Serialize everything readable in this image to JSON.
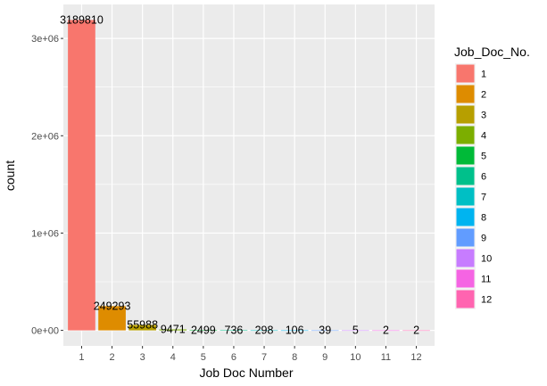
{
  "chart_data": {
    "type": "bar",
    "xlabel": "Job Doc Number",
    "ylabel": "count",
    "categories": [
      "1",
      "2",
      "3",
      "4",
      "5",
      "6",
      "7",
      "8",
      "9",
      "10",
      "11",
      "12"
    ],
    "values": [
      3189810,
      249293,
      55988,
      9471,
      2499,
      736,
      298,
      106,
      39,
      5,
      2,
      2
    ],
    "data_labels": [
      "3189810",
      "249293",
      "55988",
      "9471",
      "2499",
      "736",
      "298",
      "106",
      "39",
      "5",
      "2",
      "2"
    ],
    "y_ticks": [
      {
        "value": 0,
        "label": "0e+00"
      },
      {
        "value": 1000000,
        "label": "1e+06"
      },
      {
        "value": 2000000,
        "label": "2e+06"
      },
      {
        "value": 3000000,
        "label": "3e+06"
      }
    ],
    "ylim": [
      -159490,
      3349300
    ],
    "grid": true,
    "legend": {
      "title": "Job_Doc_No.",
      "placement": "right",
      "entries": [
        "1",
        "2",
        "3",
        "4",
        "5",
        "6",
        "7",
        "8",
        "9",
        "10",
        "11",
        "12"
      ]
    },
    "colors": [
      "#F8766D",
      "#DE8C00",
      "#B79F00",
      "#7CAE00",
      "#00BA38",
      "#00C08B",
      "#00BFC4",
      "#00B4F0",
      "#619CFF",
      "#C77CFF",
      "#F564E3",
      "#FF64B0"
    ],
    "panel_background": "#EBEBEB"
  }
}
